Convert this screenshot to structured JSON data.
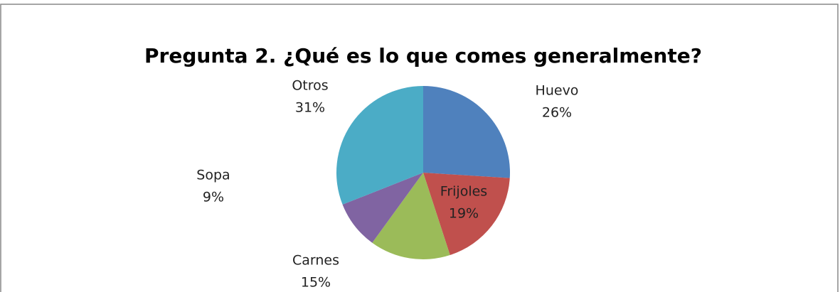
{
  "chart_data": {
    "type": "pie",
    "title": "Pregunta 2. ¿Qué es lo que comes generalmente?",
    "categories": [
      "Huevo",
      "Frijoles",
      "Carnes",
      "Sopa",
      "Otros"
    ],
    "values": [
      26,
      19,
      15,
      9,
      31
    ],
    "value_labels": [
      "26%",
      "19%",
      "15%",
      "9%",
      "31%"
    ],
    "colors": [
      "#4f81bd",
      "#c0504d",
      "#9bbb59",
      "#8064a2",
      "#4bacc6"
    ]
  }
}
